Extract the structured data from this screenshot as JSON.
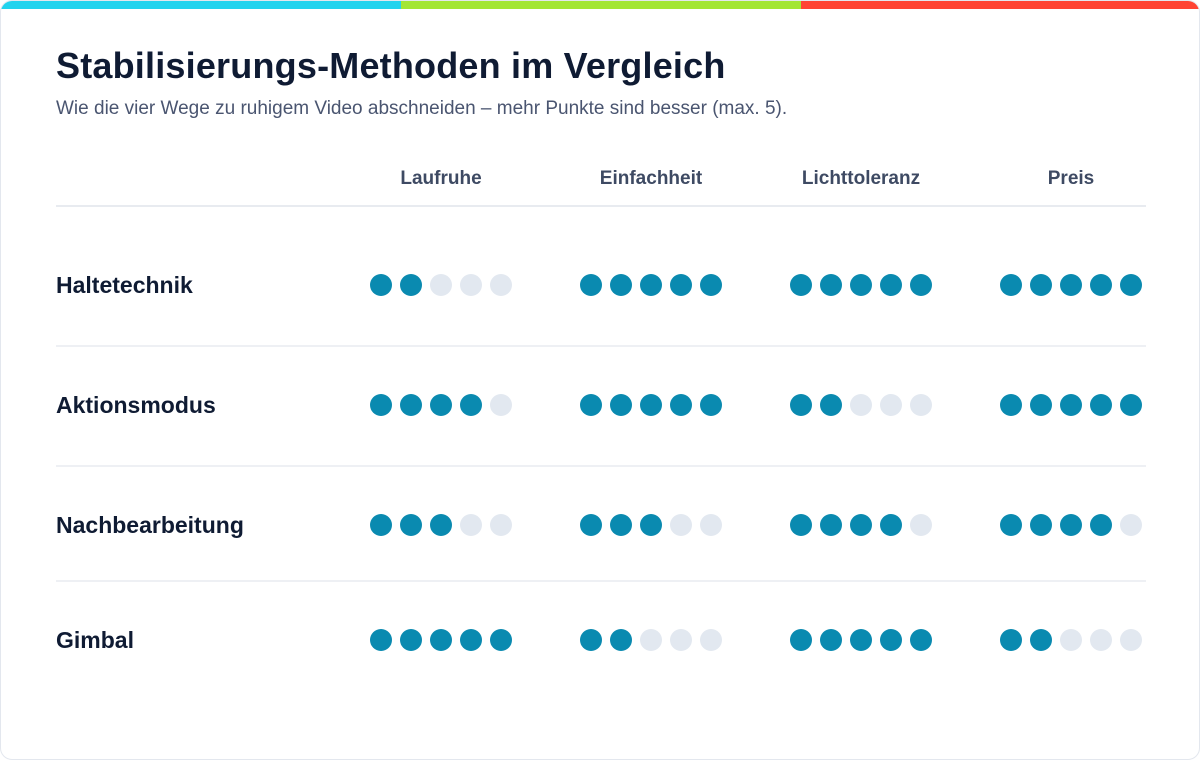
{
  "colors": {
    "accent_segments": [
      "#22d3ee",
      "#a3e635",
      "#ff4433"
    ],
    "dot_filled": "#0a8ab0",
    "dot_empty": "#e2e8f0"
  },
  "title": "Stabilisierungs-Methoden im Vergleich",
  "subtitle": "Wie die vier Wege zu ruhigem Video abschneiden – mehr Punkte sind besser (max. 5).",
  "max_score": 5,
  "columns": [
    "Laufruhe",
    "Einfachheit",
    "Lichttoleranz",
    "Preis"
  ],
  "rows": [
    {
      "label": "Haltetechnik",
      "scores": [
        2,
        5,
        5,
        5
      ]
    },
    {
      "label": "Aktionsmodus",
      "scores": [
        4,
        5,
        2,
        5
      ]
    },
    {
      "label": "Nachbearbeitung",
      "scores": [
        3,
        3,
        4,
        4
      ]
    },
    {
      "label": "Gimbal",
      "scores": [
        5,
        2,
        5,
        2
      ]
    }
  ]
}
